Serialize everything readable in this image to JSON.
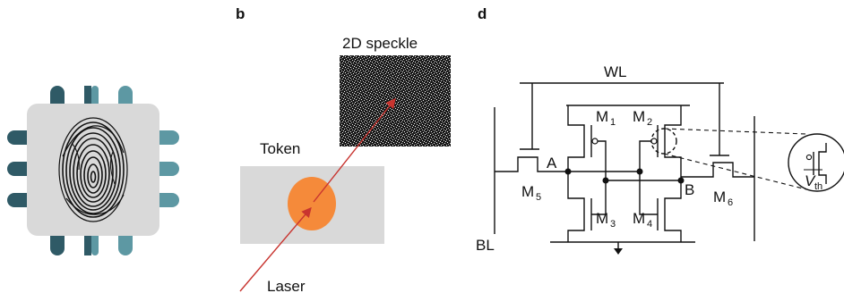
{
  "panel_labels": {
    "b": "b",
    "d": "d"
  },
  "optics": {
    "speckle_label": "2D speckle",
    "token_label": "Token",
    "laser_label": "Laser"
  },
  "circuit": {
    "wordline": "WL",
    "bitline": "BL",
    "node_a": "A",
    "node_b": "B",
    "transistors": [
      {
        "base": "M",
        "sub": "1"
      },
      {
        "base": "M",
        "sub": "2"
      },
      {
        "base": "M",
        "sub": "3"
      },
      {
        "base": "M",
        "sub": "4"
      },
      {
        "base": "M",
        "sub": "5"
      },
      {
        "base": "M",
        "sub": "6"
      }
    ],
    "inset": {
      "base": "V",
      "sub": "th"
    }
  },
  "colors": {
    "chip_body": "#d9d9d9",
    "pin_dark": "#2f5a66",
    "pin_light": "#5d98a3",
    "token": "#d9d9d9",
    "laser_spot": "#f58a3a",
    "laser_beam": "#c8342f"
  }
}
